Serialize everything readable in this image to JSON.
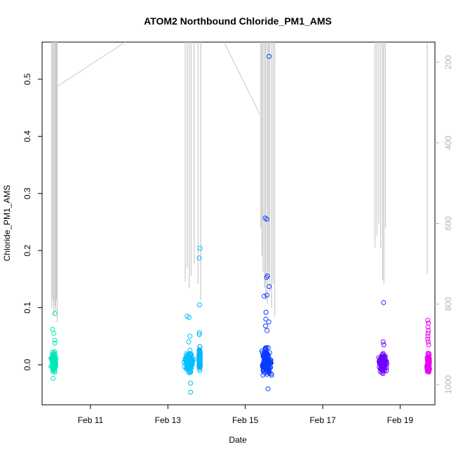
{
  "chart_data": {
    "type": "scatter",
    "title": "ATOM2 Northbound Chloride_PM1_AMS",
    "xlabel": "Date",
    "ylabel": "Chloride_PM1_AMS",
    "x_ticks": [
      "Feb 11",
      "Feb 13",
      "Feb 15",
      "Feb 17",
      "Feb 19"
    ],
    "x_tick_values": [
      11,
      13,
      15,
      17,
      19
    ],
    "xlim": [
      9.75,
      19.9
    ],
    "y_ticks": [
      "0.0",
      "0.1",
      "0.2",
      "0.3",
      "0.4",
      "0.5"
    ],
    "y_tick_values": [
      0.0,
      0.1,
      0.2,
      0.3,
      0.4,
      0.5
    ],
    "ylim": [
      -0.07,
      0.565
    ],
    "secondary_y_ticks": [
      "200",
      "400",
      "600",
      "800",
      "1000"
    ],
    "secondary_y_tick_values": [
      200,
      400,
      600,
      800,
      1000
    ],
    "secondary_ylim": [
      1050,
      150
    ],
    "secondary_series_color": "#c8c8c8",
    "grid": false,
    "legend": "none",
    "clusters": [
      {
        "x_center": 10.05,
        "x_spread": 0.09,
        "y_core": [
          -0.02,
          0.03
        ],
        "color": "#00e8b8",
        "outliers": [
          0.09,
          0.062,
          0.055,
          0.043,
          0.038,
          -0.024
        ]
      },
      {
        "x_center": 13.55,
        "x_spread": 0.16,
        "y_core": [
          -0.025,
          0.035
        ],
        "color": "#00c0ff",
        "outliers": [
          0.085,
          0.083,
          0.05,
          0.04,
          -0.048,
          -0.032
        ]
      },
      {
        "x_center": 13.82,
        "x_spread": 0.03,
        "y_core": [
          -0.02,
          0.04
        ],
        "color": "#00b4ff",
        "outliers": [
          0.204,
          0.187,
          0.105,
          0.056,
          0.053
        ]
      },
      {
        "x_center": 15.55,
        "x_spread": 0.18,
        "y_core": [
          -0.035,
          0.045
        ],
        "color": "#0a3cff",
        "outliers": [
          0.54,
          0.257,
          0.255,
          0.156,
          0.153,
          0.137,
          0.122,
          0.12,
          0.092,
          0.08,
          0.075,
          0.068,
          0.06,
          -0.042
        ]
      },
      {
        "x_center": 18.55,
        "x_spread": 0.16,
        "y_core": [
          -0.022,
          0.03
        ],
        "color": "#7000ff",
        "outliers": [
          0.109,
          0.04,
          0.035
        ]
      },
      {
        "x_center": 19.73,
        "x_spread": 0.05,
        "y_core": [
          -0.02,
          0.025
        ],
        "color": "#e800f0",
        "outliers": [
          0.078,
          0.073,
          0.066,
          0.06,
          0.055,
          0.05,
          0.045,
          0.04,
          0.035
        ]
      }
    ],
    "secondary_lines": [
      {
        "x": [
          10.0,
          10.02,
          10.05,
          10.08,
          10.1,
          10.12,
          10.14
        ],
        "y_from": 150,
        "y_to": [
          810,
          790,
          830,
          805,
          820,
          790,
          845
        ]
      },
      {
        "x": [
          13.45,
          13.5,
          13.55,
          13.6,
          13.68,
          13.78,
          13.85
        ],
        "y_from": 150,
        "y_to": [
          745,
          710,
          760,
          730,
          700,
          750,
          790
        ]
      },
      {
        "x": [
          15.4,
          15.43,
          15.46,
          15.5,
          15.53,
          15.57,
          15.6,
          15.63,
          15.68,
          15.72,
          15.76
        ],
        "y_from": 150,
        "y_to": [
          610,
          680,
          720,
          760,
          790,
          800,
          720,
          770,
          810,
          750,
          830
        ]
      },
      {
        "x": [
          18.35,
          18.4,
          18.45,
          18.5,
          18.55,
          18.58,
          18.62
        ],
        "y_from": 150,
        "y_to": [
          660,
          630,
          600,
          660,
          740,
          750,
          610
        ]
      },
      {
        "x": [
          19.7
        ],
        "y_from": 150,
        "y_to": [
          725
        ]
      }
    ],
    "secondary_connectors": [
      {
        "x": [
          10.14,
          11.9
        ],
        "y": [
          260,
          150
        ]
      },
      {
        "x": [
          14.45,
          15.38
        ],
        "y": [
          150,
          330
        ]
      }
    ]
  }
}
